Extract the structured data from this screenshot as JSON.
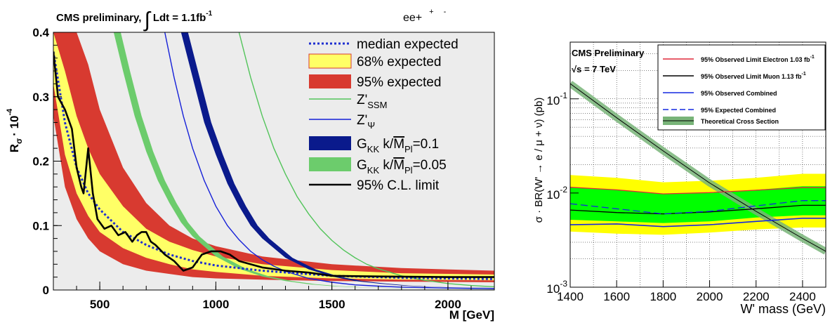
{
  "chart_data": [
    {
      "type": "line",
      "title": "CMS preliminary, ∫ Ldt = 1.1fb⁻¹",
      "title_parts": {
        "main": "CMS preliminary, ",
        "integral": "∫",
        "lumi": "Ldt = 1.1fb",
        "lumi_exp": "-1"
      },
      "channel_label": {
        "base": "ee+",
        "sup1": "+",
        "sup2": "-"
      },
      "xlabel": "M [GeV]",
      "ylabel": {
        "main": "R",
        "sub": "σ",
        "mult": "· 10",
        "exp": "-4"
      },
      "xlim": [
        300,
        2200
      ],
      "ylim": [
        0,
        0.4
      ],
      "xticks": [
        {
          "v": 500,
          "l": "500"
        },
        {
          "v": 1000,
          "l": "1000"
        },
        {
          "v": 1500,
          "l": "1500"
        },
        {
          "v": 2000,
          "l": "2000"
        }
      ],
      "yticks": [
        {
          "v": 0,
          "l": "0"
        },
        {
          "v": 0.1,
          "l": "0.1"
        },
        {
          "v": 0.2,
          "l": "0.2"
        },
        {
          "v": 0.3,
          "l": "0.3"
        },
        {
          "v": 0.4,
          "l": "0.4"
        }
      ],
      "legend_position": "top-right",
      "legend": [
        {
          "key": "median",
          "label": "median expected",
          "style": "dotted",
          "color": "#1f2fd0"
        },
        {
          "key": "band68",
          "label": "68% expected",
          "style": "fill",
          "color": "#ffff66"
        },
        {
          "key": "band95",
          "label": "95% expected",
          "style": "fill",
          "color": "#d83a30"
        },
        {
          "key": "zssm",
          "label": "Z'",
          "sub": "SSM",
          "style": "line",
          "color": "#52c45a"
        },
        {
          "key": "zpsi",
          "label": "Z'",
          "sub": "Ψ",
          "style": "line",
          "color": "#1520d8"
        },
        {
          "key": "g01",
          "label": "G",
          "sub": "KK",
          "tail": " k/",
          "over": "M",
          "over_sub": "Pl",
          "value": "=0.1",
          "style": "fill",
          "color": "#0a1a8c"
        },
        {
          "key": "g005",
          "label": "G",
          "sub": "KK",
          "tail": " k/",
          "over": "M",
          "over_sub": "Pl",
          "value": "=0.05",
          "style": "fill",
          "color": "#6ccc6c"
        },
        {
          "key": "obs",
          "label": "95% C.L. limit",
          "style": "line",
          "color": "#000000"
        }
      ],
      "series": [
        {
          "key": "median",
          "x": [
            300,
            350,
            400,
            450,
            500,
            600,
            700,
            800,
            900,
            1000,
            1200,
            1500,
            1800,
            2200
          ],
          "y": [
            0.37,
            0.26,
            0.19,
            0.15,
            0.125,
            0.09,
            0.07,
            0.055,
            0.045,
            0.038,
            0.03,
            0.022,
            0.019,
            0.017
          ]
        },
        {
          "key": "band68_low",
          "x": [
            300,
            350,
            400,
            450,
            500,
            600,
            700,
            800,
            900,
            1000,
            1200,
            1500,
            1800,
            2200
          ],
          "y": [
            0.32,
            0.21,
            0.15,
            0.115,
            0.09,
            0.065,
            0.05,
            0.04,
            0.032,
            0.028,
            0.022,
            0.018,
            0.016,
            0.015
          ]
        },
        {
          "key": "band68_high",
          "x": [
            300,
            350,
            400,
            450,
            500,
            600,
            700,
            800,
            900,
            1000,
            1200,
            1500,
            1800,
            2200
          ],
          "y": [
            0.4,
            0.34,
            0.27,
            0.22,
            0.18,
            0.13,
            0.095,
            0.075,
            0.062,
            0.052,
            0.04,
            0.031,
            0.026,
            0.024
          ]
        },
        {
          "key": "band95_low",
          "x": [
            300,
            350,
            400,
            450,
            500,
            600,
            700,
            800,
            900,
            1000,
            1200,
            1500,
            1800,
            2200
          ],
          "y": [
            0.27,
            0.16,
            0.11,
            0.08,
            0.06,
            0.04,
            0.03,
            0.025,
            0.02,
            0.018,
            0.016,
            0.014,
            0.013,
            0.012
          ]
        },
        {
          "key": "band95_high",
          "x": [
            300,
            350,
            400,
            450,
            500,
            600,
            700,
            800,
            900,
            1000,
            1200,
            1500,
            1800,
            2200
          ],
          "y": [
            0.4,
            0.4,
            0.4,
            0.35,
            0.28,
            0.19,
            0.135,
            0.1,
            0.08,
            0.068,
            0.052,
            0.04,
            0.034,
            0.03
          ]
        },
        {
          "key": "obs",
          "x": [
            300,
            320,
            350,
            380,
            400,
            420,
            430,
            450,
            470,
            490,
            520,
            550,
            580,
            610,
            640,
            660,
            680,
            700,
            720,
            740,
            780,
            820,
            860,
            900,
            940,
            980,
            1020,
            1060,
            1100,
            1200,
            1300,
            1400,
            1500,
            1700,
            2000,
            2200
          ],
          "y": [
            0.37,
            0.3,
            0.28,
            0.25,
            0.19,
            0.16,
            0.15,
            0.22,
            0.15,
            0.11,
            0.095,
            0.1,
            0.085,
            0.09,
            0.075,
            0.085,
            0.09,
            0.09,
            0.075,
            0.07,
            0.055,
            0.045,
            0.03,
            0.035,
            0.055,
            0.06,
            0.06,
            0.055,
            0.045,
            0.035,
            0.03,
            0.027,
            0.022,
            0.021,
            0.02,
            0.02
          ]
        },
        {
          "key": "zssm",
          "x": [
            1100,
            1150,
            1200,
            1250,
            1300,
            1350,
            1400,
            1450,
            1500,
            1550,
            1600,
            1650,
            1700,
            1800,
            1900,
            2000,
            2100,
            2200
          ],
          "y": [
            0.4,
            0.33,
            0.27,
            0.22,
            0.18,
            0.145,
            0.118,
            0.095,
            0.077,
            0.062,
            0.05,
            0.04,
            0.033,
            0.022,
            0.015,
            0.01,
            0.007,
            0.005
          ]
        },
        {
          "key": "zpsi",
          "x": [
            780,
            820,
            860,
            900,
            950,
            1000,
            1050,
            1100,
            1150,
            1200,
            1250,
            1300,
            1400,
            1500,
            1600,
            1700,
            1800,
            2000,
            2200
          ],
          "y": [
            0.4,
            0.33,
            0.27,
            0.22,
            0.17,
            0.13,
            0.1,
            0.078,
            0.06,
            0.047,
            0.037,
            0.029,
            0.018,
            0.012,
            0.008,
            0.006,
            0.0045,
            0.003,
            0.002
          ]
        },
        {
          "key": "g01_a",
          "x": [
            850,
            900,
            950,
            1000,
            1050,
            1100,
            1150,
            1200,
            1300,
            1400,
            1500,
            1600,
            1700,
            1800,
            1900,
            2000,
            2200
          ],
          "y": [
            0.4,
            0.33,
            0.26,
            0.21,
            0.165,
            0.13,
            0.1,
            0.08,
            0.05,
            0.032,
            0.021,
            0.014,
            0.01,
            0.007,
            0.005,
            0.004,
            0.003
          ]
        },
        {
          "key": "g01_b",
          "x": [
            880,
            930,
            980,
            1030,
            1080,
            1130,
            1180,
            1230,
            1330,
            1430,
            1530,
            1630,
            1730,
            1830,
            1930,
            2030,
            2200
          ],
          "y": [
            0.4,
            0.33,
            0.26,
            0.21,
            0.165,
            0.13,
            0.1,
            0.08,
            0.05,
            0.032,
            0.021,
            0.014,
            0.01,
            0.007,
            0.005,
            0.004,
            0.0033
          ]
        },
        {
          "key": "g005_a",
          "x": [
            560,
            600,
            650,
            700,
            750,
            800,
            850,
            900,
            1000,
            1100,
            1200,
            1300,
            1400,
            1500,
            1600,
            1800,
            2000,
            2200
          ],
          "y": [
            0.4,
            0.34,
            0.27,
            0.215,
            0.17,
            0.135,
            0.105,
            0.083,
            0.052,
            0.033,
            0.021,
            0.014,
            0.009,
            0.006,
            0.0042,
            0.0025,
            0.0016,
            0.001
          ]
        },
        {
          "key": "g005_b",
          "x": [
            590,
            630,
            680,
            730,
            780,
            830,
            880,
            930,
            1030,
            1130,
            1230,
            1330,
            1430,
            1530,
            1630,
            1830,
            2030,
            2200
          ],
          "y": [
            0.4,
            0.34,
            0.27,
            0.215,
            0.17,
            0.135,
            0.105,
            0.083,
            0.052,
            0.033,
            0.021,
            0.014,
            0.009,
            0.006,
            0.0042,
            0.0025,
            0.0016,
            0.0012
          ]
        }
      ]
    },
    {
      "type": "line",
      "title": "CMS Preliminary",
      "subtitle": "√s = 7 TeV",
      "subtitle_parts": {
        "root": "√",
        "rest": "s = 7 TeV"
      },
      "xlabel": "W' mass (GeV)",
      "ylabel": "σ · BR(W' → e / μ + ν) (pb)",
      "yscale": "log",
      "xlim": [
        1400,
        2500
      ],
      "ylim": [
        0.001,
        0.4
      ],
      "xticks": [
        {
          "v": 1400,
          "l": "1400"
        },
        {
          "v": 1600,
          "l": "1600"
        },
        {
          "v": 1800,
          "l": "1800"
        },
        {
          "v": 2000,
          "l": "2000"
        },
        {
          "v": 2200,
          "l": "2200"
        },
        {
          "v": 2400,
          "l": "2400"
        }
      ],
      "yticks": [
        {
          "v": 0.001,
          "base": "10",
          "exp": "-3"
        },
        {
          "v": 0.01,
          "base": "10",
          "exp": "-2"
        },
        {
          "v": 0.1,
          "base": "10",
          "exp": "-1"
        }
      ],
      "legend_position": "top-right",
      "legend": [
        {
          "key": "obs_e",
          "label": "95% Observed Limit Electron 1.03 fb",
          "sup": "-1",
          "style": "line",
          "color": "#e0283a"
        },
        {
          "key": "obs_mu",
          "label": "95% Observed Limit Muon 1.13 fb",
          "sup": "-1",
          "style": "line",
          "color": "#000000"
        },
        {
          "key": "obs_comb",
          "label": "95% Observed Combined",
          "style": "line",
          "color": "#1428e0"
        },
        {
          "key": "exp_comb",
          "label": "95% Expected Combined",
          "style": "dashed",
          "color": "#1428e0"
        },
        {
          "key": "theory",
          "label": "Theoretical Cross Section",
          "style": "band",
          "color": "#78b478"
        }
      ],
      "series": [
        {
          "key": "yellow_low",
          "x": [
            1400,
            1600,
            1800,
            2000,
            2200,
            2400,
            2500
          ],
          "y": [
            0.0039,
            0.0037,
            0.0036,
            0.0038,
            0.0041,
            0.0043,
            0.0043
          ]
        },
        {
          "key": "yellow_high",
          "x": [
            1400,
            1600,
            1800,
            2000,
            2200,
            2400,
            2500
          ],
          "y": [
            0.0155,
            0.0145,
            0.013,
            0.0135,
            0.0145,
            0.016,
            0.016
          ]
        },
        {
          "key": "green_low",
          "x": [
            1400,
            1600,
            1800,
            2000,
            2200,
            2400,
            2500
          ],
          "y": [
            0.0052,
            0.005,
            0.0048,
            0.005,
            0.0055,
            0.0058,
            0.0058
          ]
        },
        {
          "key": "green_high",
          "x": [
            1400,
            1600,
            1800,
            2000,
            2200,
            2400,
            2500
          ],
          "y": [
            0.0115,
            0.0108,
            0.0098,
            0.01,
            0.0108,
            0.0118,
            0.0118
          ]
        },
        {
          "key": "obs_e",
          "x": [
            1400,
            1600,
            1800,
            2000,
            2200,
            2400,
            2500
          ],
          "y": [
            0.0115,
            0.0108,
            0.0098,
            0.0101,
            0.0107,
            0.0114,
            0.0114
          ]
        },
        {
          "key": "obs_mu",
          "x": [
            1400,
            1600,
            1800,
            2000,
            2200,
            2400,
            2500
          ],
          "y": [
            0.0066,
            0.0062,
            0.006,
            0.0063,
            0.0068,
            0.0074,
            0.0074
          ]
        },
        {
          "key": "obs_comb",
          "x": [
            1400,
            1600,
            1800,
            2000,
            2200,
            2400,
            2500
          ],
          "y": [
            0.0046,
            0.0047,
            0.0044,
            0.0046,
            0.005,
            0.0054,
            0.0054
          ]
        },
        {
          "key": "exp_comb",
          "x": [
            1400,
            1600,
            1800,
            2000,
            2200,
            2400,
            2500
          ],
          "y": [
            0.0077,
            0.0068,
            0.006,
            0.0064,
            0.0073,
            0.0083,
            0.0083
          ]
        },
        {
          "key": "theory",
          "x": [
            1400,
            1600,
            1800,
            2000,
            2200,
            2400,
            2500
          ],
          "y": [
            0.145,
            0.063,
            0.028,
            0.0128,
            0.0064,
            0.0033,
            0.0024
          ]
        }
      ]
    }
  ]
}
